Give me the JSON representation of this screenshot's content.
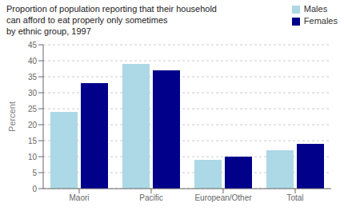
{
  "chart_data": {
    "type": "bar",
    "title": "Proportion of population reporting that their household\ncan afford to eat properly only sometimes\nby ethnic group, 1997",
    "categories": [
      "Maori",
      "Pacific",
      "European/Other",
      "Total"
    ],
    "series": [
      {
        "name": "Males",
        "color": "#add8e6",
        "values": [
          24,
          39,
          9,
          12
        ]
      },
      {
        "name": "Females",
        "color": "#00008b",
        "values": [
          33,
          37,
          10,
          14
        ]
      }
    ],
    "ylabel": "Percent",
    "ylim": [
      0,
      45
    ],
    "yticks": [
      0,
      5,
      10,
      15,
      20,
      25,
      30,
      35,
      40,
      45
    ],
    "grid": true,
    "legend": "upper right"
  }
}
